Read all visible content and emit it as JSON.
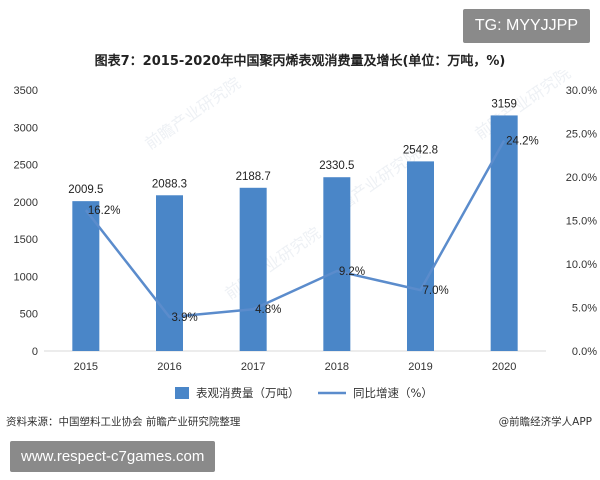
{
  "overlay": {
    "top_badge": "TG: MYYJJPP",
    "bottom_badge": "www.respect-c7games.com"
  },
  "source": "资料来源：中国塑料工业协会 前瞻产业研究院整理",
  "brand": "@前瞻经济学人APP",
  "watermark": "前瞻产业研究院",
  "colors": {
    "bar": "#4a86c8",
    "line": "#5b8ccc"
  },
  "chart_data": {
    "type": "bar+line",
    "title": "图表7：2015-2020年中国聚丙烯表观消费量及增长(单位：万吨，%)",
    "categories": [
      "2015",
      "2016",
      "2017",
      "2018",
      "2019",
      "2020"
    ],
    "series": [
      {
        "name": "表观消费量（万吨）",
        "type": "bar",
        "axis": "left",
        "values": [
          2009.5,
          2088.3,
          2188.7,
          2330.5,
          2542.8,
          3159
        ],
        "labels": [
          "2009.5",
          "2088.3",
          "2188.7",
          "2330.5",
          "2542.8",
          "3159"
        ]
      },
      {
        "name": "同比增速（%）",
        "type": "line",
        "axis": "right",
        "values": [
          16.2,
          3.9,
          4.8,
          9.2,
          7.0,
          24.2
        ],
        "labels": [
          "16.2%",
          "3.9%",
          "4.8%",
          "9.2%",
          "7.0%",
          "24.2%"
        ]
      }
    ],
    "y_left": {
      "ylim": [
        0,
        3500
      ],
      "ticks": [
        0,
        500,
        1000,
        1500,
        2000,
        2500,
        3000,
        3500
      ],
      "tick_labels": [
        "0",
        "500",
        "1000",
        "1500",
        "2000",
        "2500",
        "3000",
        "3500"
      ]
    },
    "y_right": {
      "ylim": [
        0,
        30
      ],
      "ticks": [
        0,
        5,
        10,
        15,
        20,
        25,
        30
      ],
      "tick_labels": [
        "0.0%",
        "5.0%",
        "10.0%",
        "15.0%",
        "20.0%",
        "25.0%",
        "30.0%"
      ]
    },
    "grid": false,
    "legend_position": "bottom"
  }
}
